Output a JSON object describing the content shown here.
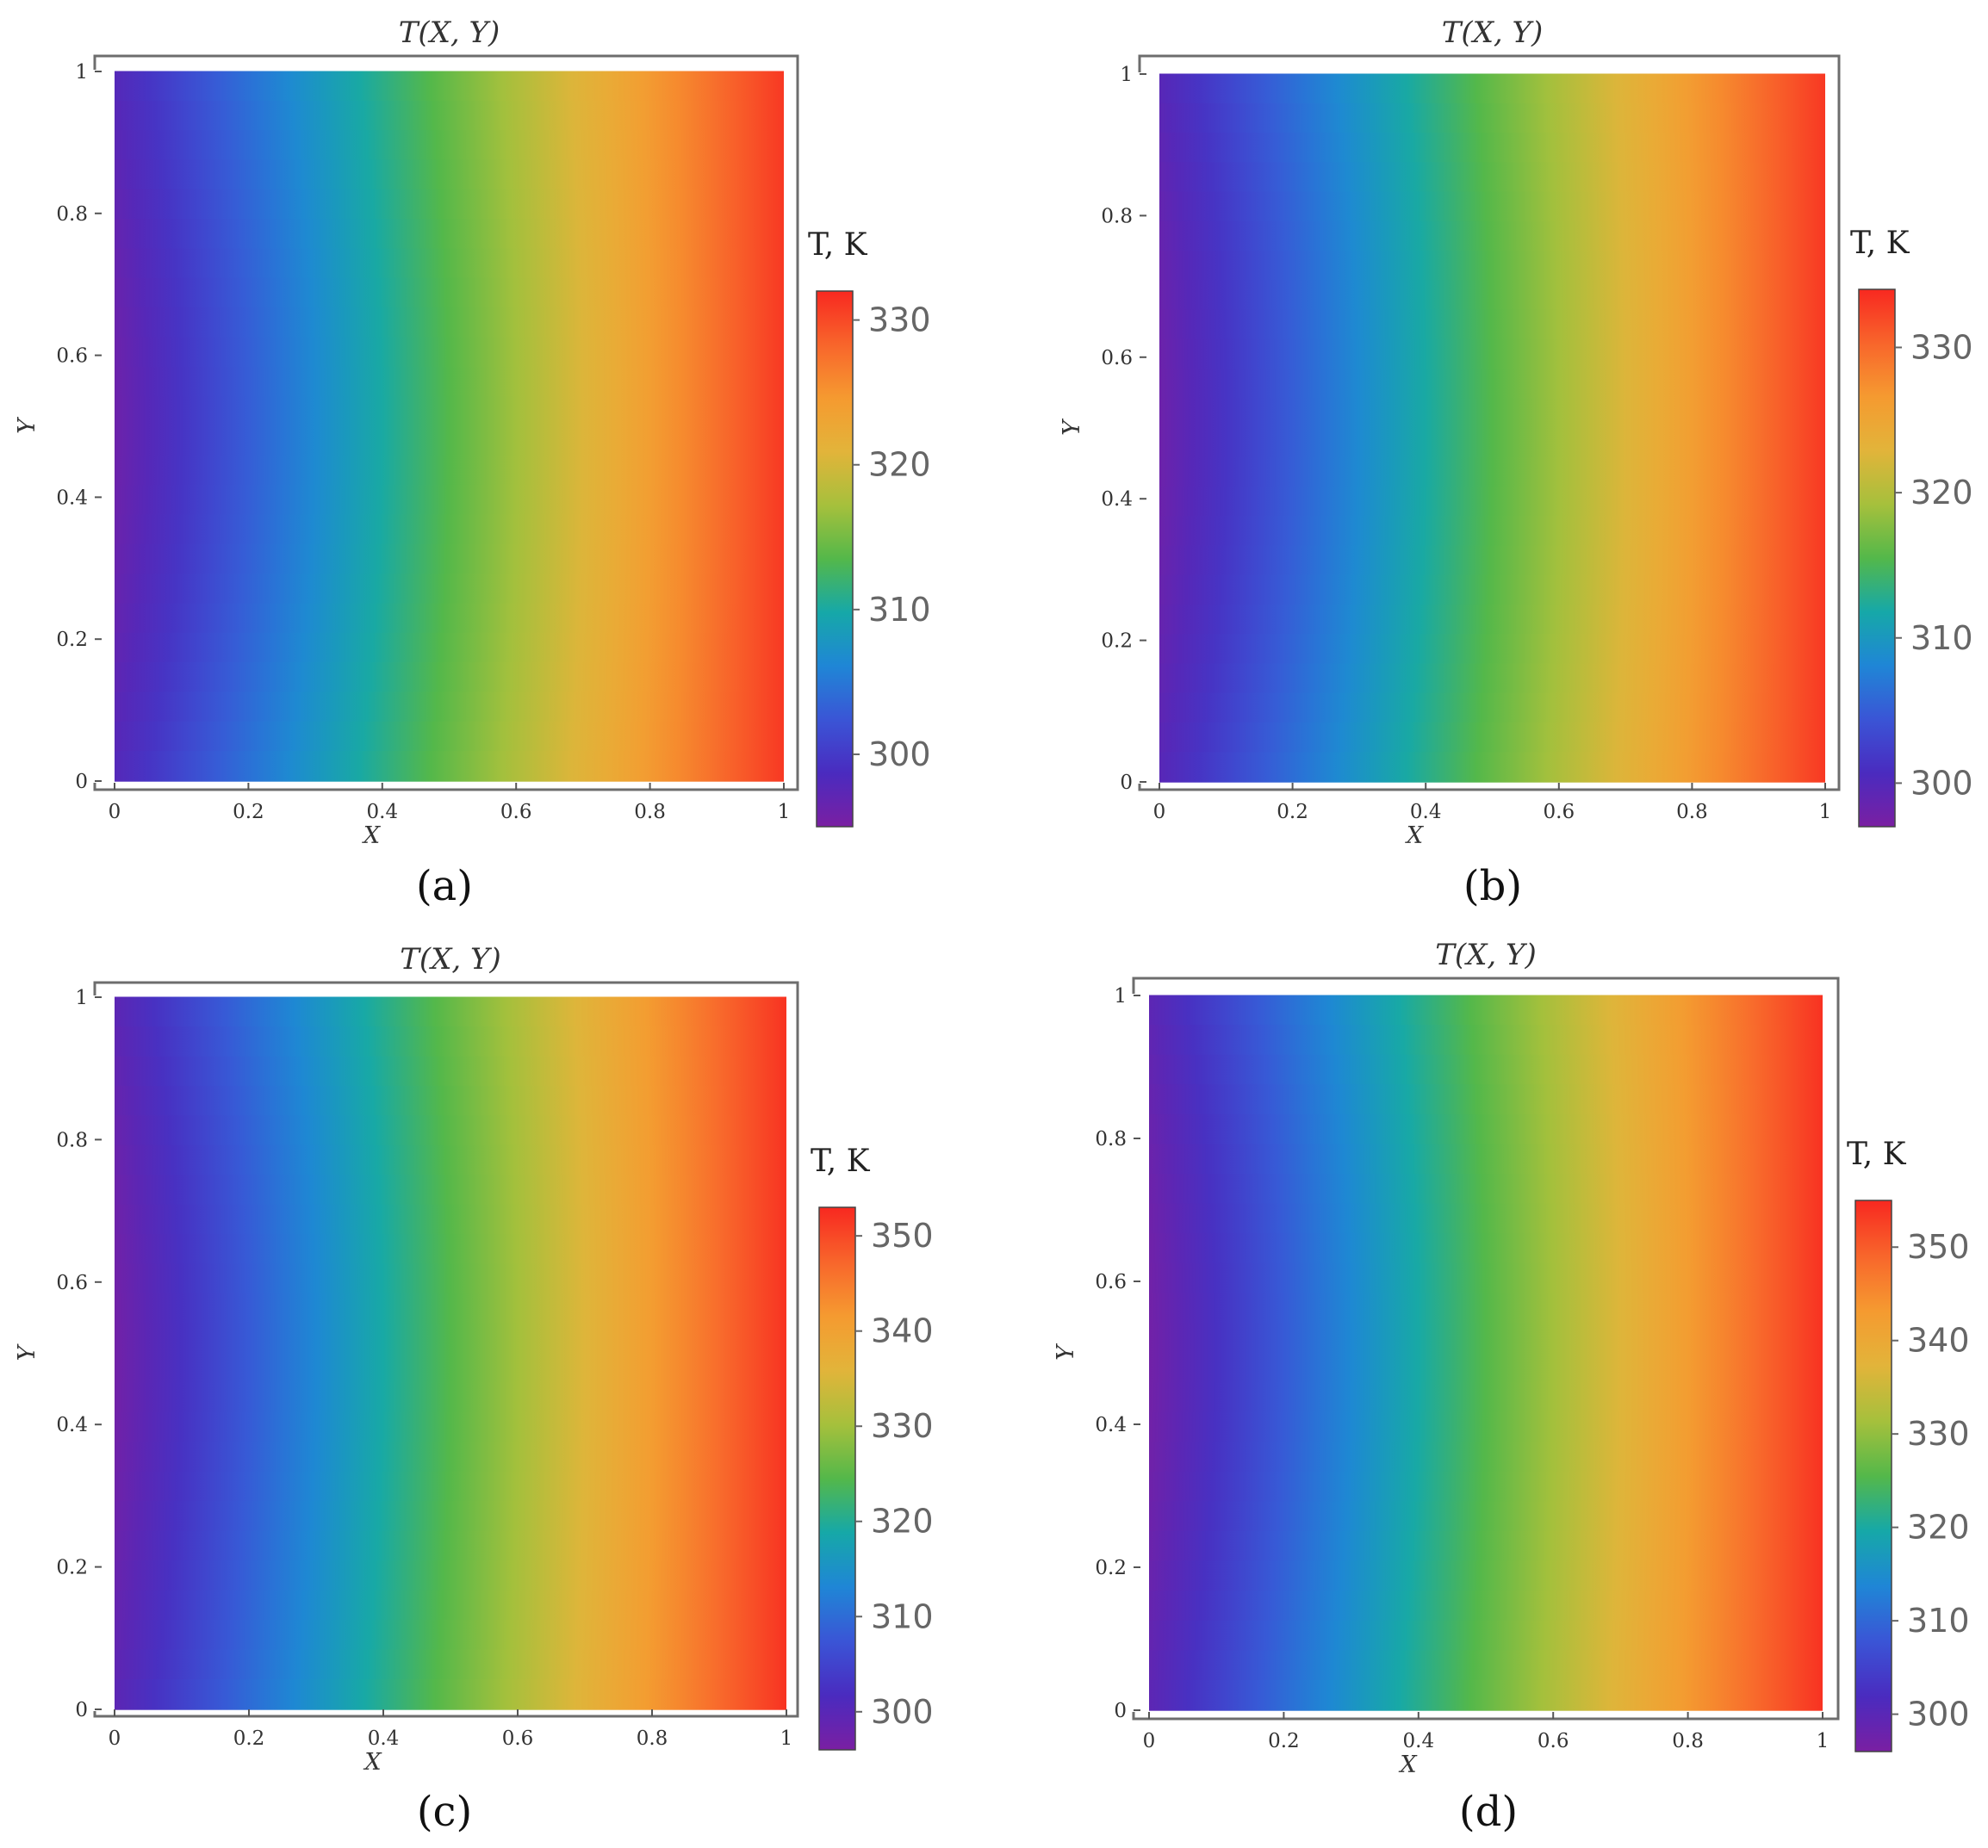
{
  "colors": {
    "colormap": [
      "#7a1fa2",
      "#4a2bbf",
      "#3a55d6",
      "#1f86d6",
      "#16a8a8",
      "#54b84a",
      "#a6c03c",
      "#e2b43a",
      "#f59a30",
      "#f8652b",
      "#f82820"
    ],
    "frame": "#6d6d6d"
  },
  "chart_data": [
    {
      "type": "heatmap",
      "panel_label": "(a)",
      "title": "T(X, Y)",
      "xlabel": "X",
      "ylabel": "Y",
      "xlim": [
        0,
        1
      ],
      "ylim": [
        0,
        1
      ],
      "x_ticks": [
        "0",
        "0.2",
        "0.4",
        "0.6",
        "0.8",
        "1"
      ],
      "y_ticks": [
        "0",
        "0.2",
        "0.4",
        "0.6",
        "0.8",
        "1"
      ],
      "colorbar": {
        "title": "T, K",
        "range": [
          295,
          332
        ],
        "ticks": [
          300,
          310,
          320,
          330
        ]
      },
      "field": {
        "t_left": 296,
        "t_right": 331,
        "edge_shift": 0.06
      }
    },
    {
      "type": "heatmap",
      "panel_label": "(b)",
      "title": "T(X, Y)",
      "xlabel": "X",
      "ylabel": "Y",
      "xlim": [
        0,
        1
      ],
      "ylim": [
        0,
        1
      ],
      "x_ticks": [
        "0",
        "0.2",
        "0.4",
        "0.6",
        "0.8",
        "1"
      ],
      "y_ticks": [
        "0",
        "0.2",
        "0.4",
        "0.6",
        "0.8",
        "1"
      ],
      "colorbar": {
        "title": "T, K",
        "range": [
          297,
          334
        ],
        "ticks": [
          300,
          310,
          320,
          330
        ]
      },
      "field": {
        "t_left": 298,
        "t_right": 333,
        "edge_shift": 0.05
      }
    },
    {
      "type": "heatmap",
      "panel_label": "(c)",
      "title": "T(X, Y)",
      "xlabel": "X",
      "ylabel": "Y",
      "xlim": [
        0,
        1
      ],
      "ylim": [
        0,
        1
      ],
      "x_ticks": [
        "0",
        "0.2",
        "0.4",
        "0.6",
        "0.8",
        "1"
      ],
      "y_ticks": [
        "0",
        "0.2",
        "0.4",
        "0.6",
        "0.8",
        "1"
      ],
      "colorbar": {
        "title": "T, K",
        "range": [
          296,
          353
        ],
        "ticks": [
          300,
          310,
          320,
          330,
          340,
          350
        ]
      },
      "field": {
        "t_left": 297,
        "t_right": 352,
        "edge_shift": 0.05
      }
    },
    {
      "type": "heatmap",
      "panel_label": "(d)",
      "title": "T(X, Y)",
      "xlabel": "X",
      "ylabel": "Y",
      "xlim": [
        0,
        1
      ],
      "ylim": [
        0,
        1
      ],
      "x_ticks": [
        "0",
        "0.2",
        "0.4",
        "0.6",
        "0.8",
        "1"
      ],
      "y_ticks": [
        "0",
        "0.2",
        "0.4",
        "0.6",
        "0.8",
        "1"
      ],
      "colorbar": {
        "title": "T, K",
        "range": [
          296,
          355
        ],
        "ticks": [
          300,
          310,
          320,
          330,
          340,
          350
        ]
      },
      "field": {
        "t_left": 297,
        "t_right": 354,
        "edge_shift": 0.05
      }
    }
  ]
}
